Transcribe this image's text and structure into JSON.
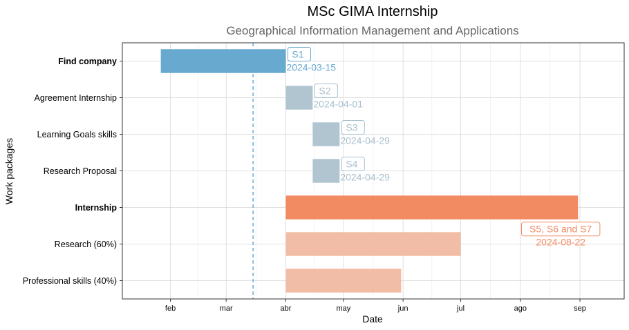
{
  "chart_data": {
    "type": "gantt",
    "title": "MSc GIMA Internship",
    "subtitle": "Geographical Information Management and Applications",
    "xlabel": "Date",
    "ylabel": "Work packages",
    "x_ticks": [
      {
        "label": "feb",
        "date": "2024-02-01"
      },
      {
        "label": "mar",
        "date": "2024-03-01"
      },
      {
        "label": "abr",
        "date": "2024-04-01"
      },
      {
        "label": "may",
        "date": "2024-05-01"
      },
      {
        "label": "jun",
        "date": "2024-06-01"
      },
      {
        "label": "jul",
        "date": "2024-07-01"
      },
      {
        "label": "ago",
        "date": "2024-08-01"
      },
      {
        "label": "sep",
        "date": "2024-09-01"
      }
    ],
    "xlim": [
      "2024-01-07",
      "2024-09-24"
    ],
    "grid": true,
    "today_line": {
      "date": "2024-03-15",
      "color": "#6aaed6"
    },
    "tasks": [
      {
        "name": "Find company",
        "bold": true,
        "start": "2024-01-27",
        "end": "2024-04-01",
        "color": "#67a9cf"
      },
      {
        "name": "Agreement Internship",
        "bold": false,
        "start": "2024-04-01",
        "end": "2024-04-15",
        "color": "#b1c5d1"
      },
      {
        "name": "Learning Goals skills",
        "bold": false,
        "start": "2024-04-15",
        "end": "2024-04-29",
        "color": "#b1c5d1"
      },
      {
        "name": "Research Proposal",
        "bold": false,
        "start": "2024-04-15",
        "end": "2024-04-29",
        "color": "#b1c5d1"
      },
      {
        "name": "Internship",
        "bold": true,
        "start": "2024-04-01",
        "end": "2024-08-31",
        "color": "#f28b62"
      },
      {
        "name": "Research (60%)",
        "bold": false,
        "start": "2024-04-01",
        "end": "2024-07-01",
        "color": "#f2bda6"
      },
      {
        "name": "Professional skills (40%)",
        "bold": false,
        "start": "2024-04-01",
        "end": "2024-05-31",
        "color": "#f2bda6"
      }
    ],
    "annotations": [
      {
        "row": 0,
        "label": "S1",
        "date_label": "2024-03-15",
        "color": "#67a9cf",
        "anchor": "2024-04-01",
        "align": "left"
      },
      {
        "row": 1,
        "label": "S2",
        "date_label": "2024-04-01",
        "color": "#a8c0cf",
        "anchor": "2024-04-15",
        "align": "left"
      },
      {
        "row": 2,
        "label": "S3",
        "date_label": "2024-04-29",
        "color": "#a8c0cf",
        "anchor": "2024-04-29",
        "align": "left"
      },
      {
        "row": 3,
        "label": "S4",
        "date_label": "2024-04-29",
        "color": "#a8c0cf",
        "anchor": "2024-04-29",
        "align": "left"
      },
      {
        "row": 4,
        "label": "S5, S6 and S7",
        "date_label": "2024-08-22",
        "color": "#f28b62",
        "anchor": "2024-08-22",
        "align": "below"
      }
    ]
  }
}
